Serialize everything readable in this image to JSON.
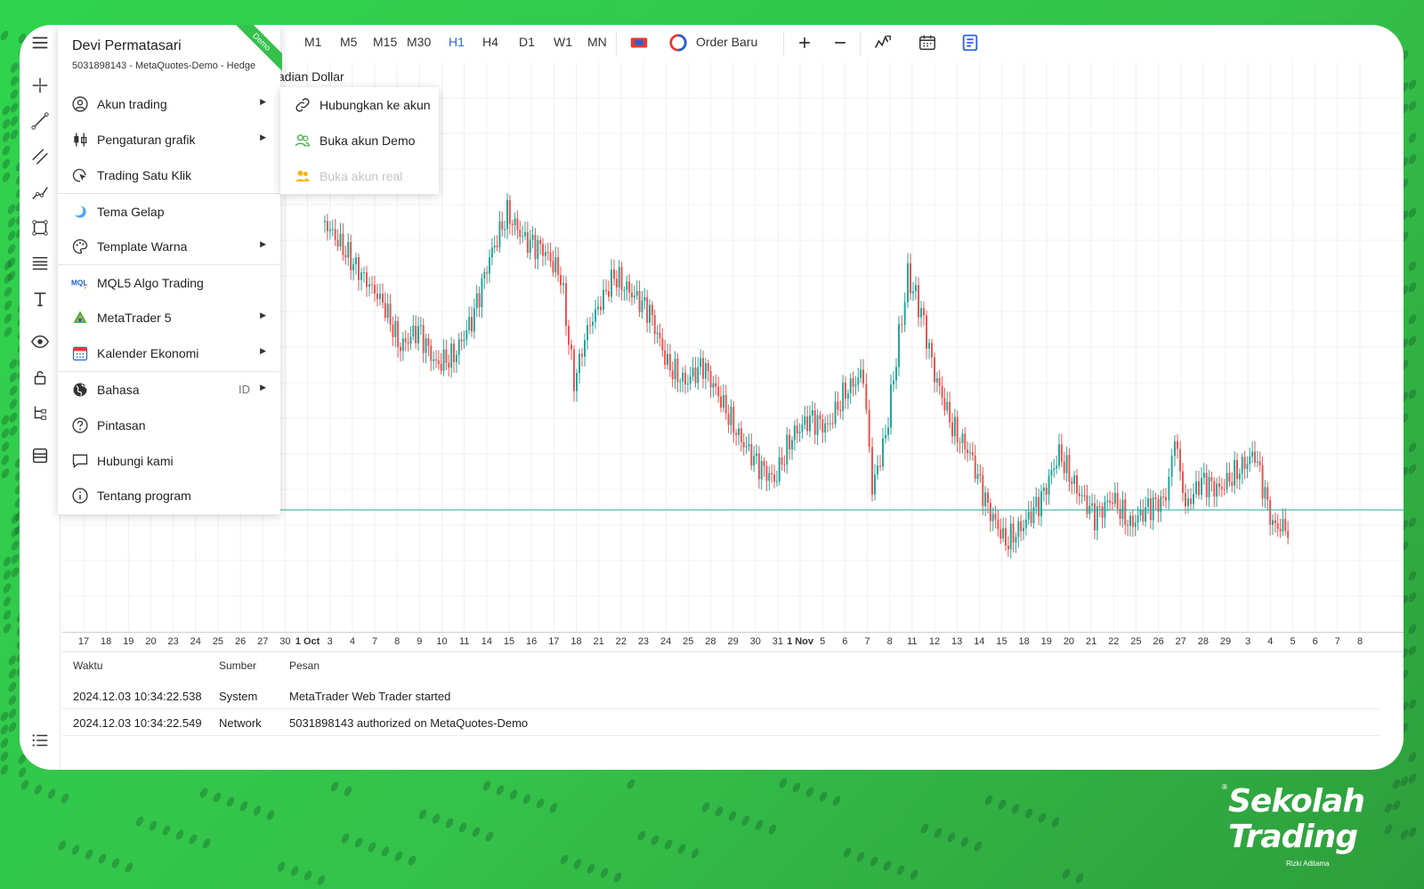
{
  "menu": {
    "user_name": "Devi Permatasari",
    "account_info": "5031898143 - MetaQuotes-Demo - Hedge",
    "badge": "Demo",
    "items": [
      {
        "label": "Akun trading",
        "icon": "user-circle-icon",
        "arrow": true
      },
      {
        "label": "Pengaturan grafik",
        "icon": "candles-icon",
        "arrow": true
      },
      {
        "label": "Trading Satu Klik",
        "icon": "cursor-click-icon",
        "arrow": false
      },
      {
        "label": "Tema Gelap",
        "icon": "moon-icon",
        "arrow": false
      },
      {
        "label": "Template Warna",
        "icon": "palette-icon",
        "arrow": true
      },
      {
        "label": "MQL5 Algo Trading",
        "icon": "mql5-logo-icon",
        "arrow": false
      },
      {
        "label": "MetaTrader 5",
        "icon": "metatrader-logo-icon",
        "arrow": true
      },
      {
        "label": "Kalender Ekonomi",
        "icon": "calendar-icon",
        "arrow": true
      },
      {
        "label": "Bahasa",
        "icon": "globe-icon",
        "arrow": true,
        "extra": "ID"
      },
      {
        "label": "Pintasan",
        "icon": "question-icon",
        "arrow": false
      },
      {
        "label": "Hubungi kami",
        "icon": "chat-icon",
        "arrow": false
      },
      {
        "label": "Tentang program",
        "icon": "info-icon",
        "arrow": false
      }
    ]
  },
  "submenu": {
    "items": [
      {
        "label": "Hubungkan ke akun",
        "icon": "link-icon",
        "disabled": false
      },
      {
        "label": "Buka akun Demo",
        "icon": "users-green-icon",
        "disabled": false
      },
      {
        "label": "Buka akun real",
        "icon": "users-yellow-icon",
        "disabled": true
      }
    ]
  },
  "toolbar": {
    "timeframes": [
      "M1",
      "M5",
      "M15",
      "M30",
      "H1",
      "H4",
      "D1",
      "W1",
      "MN"
    ],
    "active_timeframe": "H1",
    "order_label": "Order Baru"
  },
  "chart": {
    "symbol_partial": "adian Dollar",
    "x_labels": [
      {
        "t": "17"
      },
      {
        "t": "18"
      },
      {
        "t": "19"
      },
      {
        "t": "20"
      },
      {
        "t": "23"
      },
      {
        "t": "24"
      },
      {
        "t": "25"
      },
      {
        "t": "26"
      },
      {
        "t": "27"
      },
      {
        "t": "30"
      },
      {
        "t": "1 Oct",
        "bold": true
      },
      {
        "t": "3"
      },
      {
        "t": "4"
      },
      {
        "t": "7"
      },
      {
        "t": "8"
      },
      {
        "t": "9"
      },
      {
        "t": "10"
      },
      {
        "t": "11"
      },
      {
        "t": "14"
      },
      {
        "t": "15"
      },
      {
        "t": "16"
      },
      {
        "t": "17"
      },
      {
        "t": "18"
      },
      {
        "t": "21"
      },
      {
        "t": "22"
      },
      {
        "t": "23"
      },
      {
        "t": "24"
      },
      {
        "t": "25"
      },
      {
        "t": "28"
      },
      {
        "t": "29"
      },
      {
        "t": "30"
      },
      {
        "t": "31"
      },
      {
        "t": "1 Nov",
        "bold": true
      },
      {
        "t": "5"
      },
      {
        "t": "6"
      },
      {
        "t": "7"
      },
      {
        "t": "8"
      },
      {
        "t": "11"
      },
      {
        "t": "12"
      },
      {
        "t": "13"
      },
      {
        "t": "14"
      },
      {
        "t": "15"
      },
      {
        "t": "18"
      },
      {
        "t": "19"
      },
      {
        "t": "20"
      },
      {
        "t": "21"
      },
      {
        "t": "22"
      },
      {
        "t": "25"
      },
      {
        "t": "26"
      },
      {
        "t": "27"
      },
      {
        "t": "28"
      },
      {
        "t": "29"
      },
      {
        "t": "3"
      },
      {
        "t": "4"
      },
      {
        "t": "5"
      },
      {
        "t": "6"
      },
      {
        "t": "7"
      },
      {
        "t": "8"
      }
    ],
    "up_color": "#26a69a",
    "down_color": "#ef5350",
    "price_line_color": "#26a69a"
  },
  "log": {
    "headers": {
      "time": "Waktu",
      "source": "Sumber",
      "message": "Pesan"
    },
    "rows": [
      {
        "time": "2024.12.03 10:34:22.538",
        "source": "System",
        "message": "MetaTrader Web Trader started"
      },
      {
        "time": "2024.12.03 10:34:22.549",
        "source": "Network",
        "message": "5031898143 authorized on MetaQuotes-Demo"
      }
    ]
  },
  "brand": {
    "line1": "Sekolah",
    "line2": "Trading",
    "tagline": "Rizki Aditama",
    "reg": "®"
  },
  "colors": {
    "accent": "#2d63e0",
    "background_green": "#34c24a"
  }
}
